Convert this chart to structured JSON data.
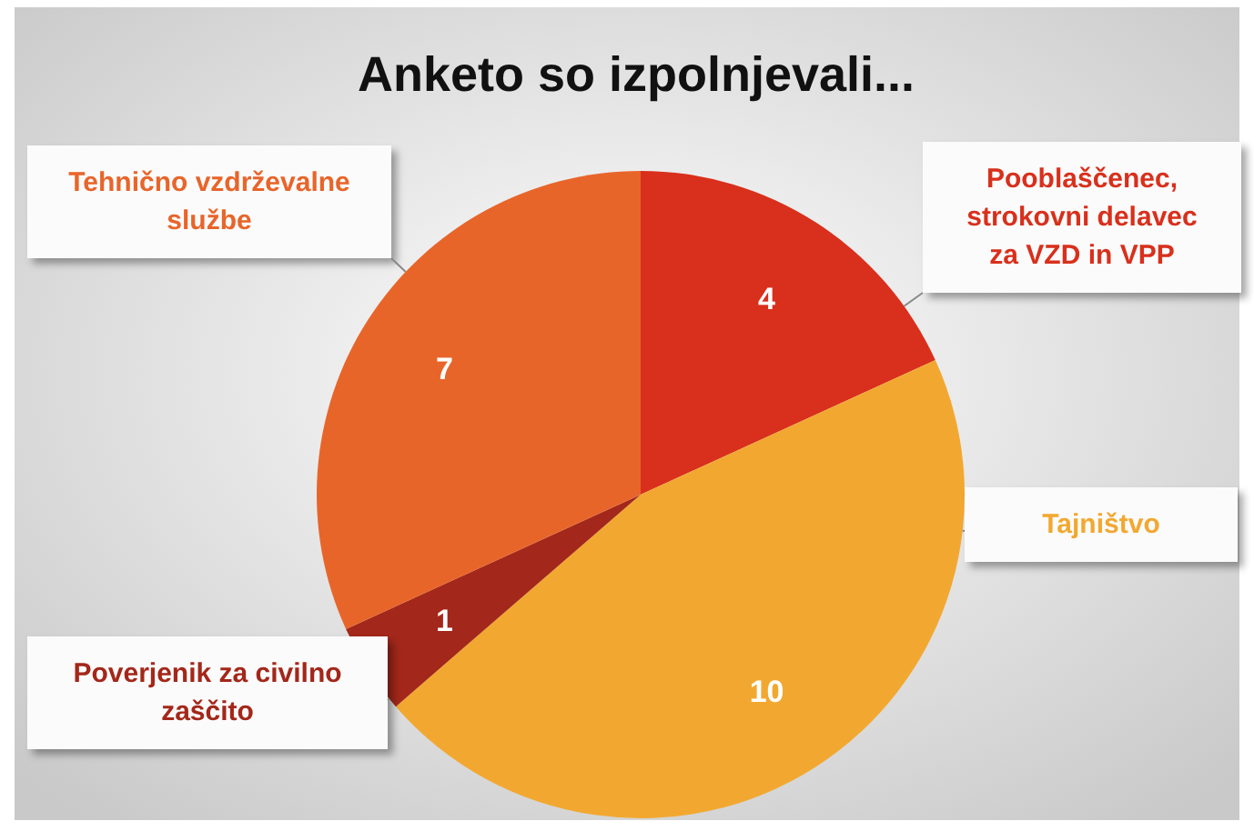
{
  "chart_data": {
    "type": "pie",
    "title": "Anketo so izpolnjevali...",
    "categories": [
      "Pooblaščenec, strokovni delavec za VZD in VPP",
      "Tajništvo",
      "Poverjenik za civilno zaščito",
      "Tehnično vzdrževalne službe"
    ],
    "values": [
      4,
      10,
      1,
      7
    ],
    "colors": [
      "#d8301c",
      "#f2a830",
      "#a3271a",
      "#e8652a"
    ],
    "data_labels": true
  }
}
